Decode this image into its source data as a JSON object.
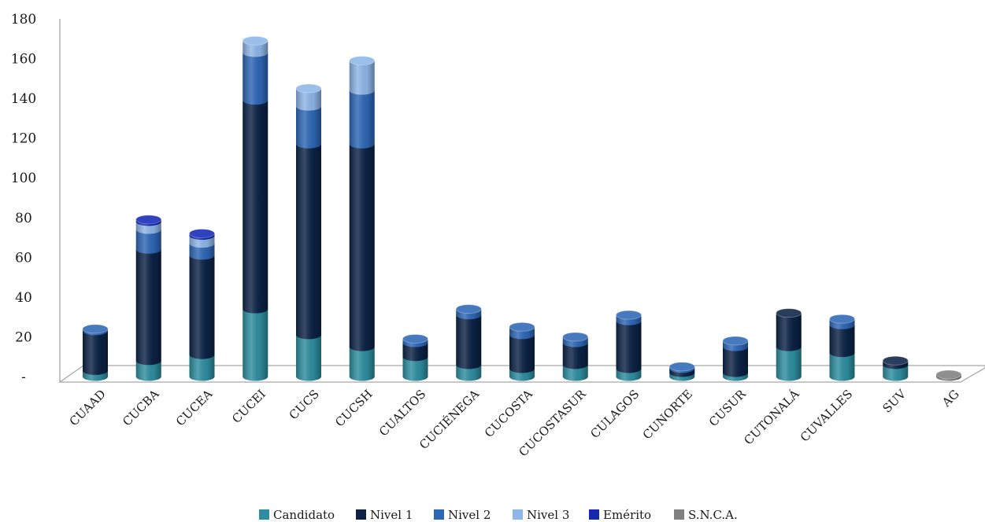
{
  "chart_data": {
    "type": "bar",
    "stacked": true,
    "style": "3d-cylinder",
    "title": "",
    "xlabel": "",
    "ylabel": "",
    "ylim": [
      0,
      180
    ],
    "yticks": [
      {
        "value": 0,
        "label": "-"
      },
      {
        "value": 20,
        "label": "20"
      },
      {
        "value": 40,
        "label": "40"
      },
      {
        "value": 60,
        "label": "60"
      },
      {
        "value": 80,
        "label": "80"
      },
      {
        "value": 100,
        "label": "100"
      },
      {
        "value": 120,
        "label": "120"
      },
      {
        "value": 140,
        "label": "140"
      },
      {
        "value": 160,
        "label": "160"
      },
      {
        "value": 180,
        "label": "180"
      }
    ],
    "grid": false,
    "legend_position": "bottom",
    "categories": [
      "CUAAD",
      "CUCBA",
      "CUCEA",
      "CUCEI",
      "CUCS",
      "CUCSH",
      "CUALTOS",
      "CUCIÉNEGA",
      "CUCOSTA",
      "CUCOSTASUR",
      "CULAGOS",
      "CUNORTE",
      "CUSUR",
      "CUTONALÁ",
      "CUVALLES",
      "SUV",
      "AG"
    ],
    "series": [
      {
        "name": "Candidato",
        "color": "#2e8ea0",
        "values": [
          3,
          8,
          11,
          34,
          21,
          15,
          10,
          6,
          4,
          6,
          4,
          2,
          2,
          15,
          12,
          6,
          0
        ]
      },
      {
        "name": "Nivel 1",
        "color": "#0c2346",
        "values": [
          20,
          56,
          50,
          105,
          96,
          102,
          7,
          25,
          17,
          11,
          24,
          2,
          13,
          17,
          14,
          2,
          0
        ]
      },
      {
        "name": "Nivel 2",
        "color": "#2e67b6",
        "values": [
          1,
          10,
          6,
          24,
          19,
          27,
          2,
          3,
          4,
          3,
          3,
          1,
          3,
          0,
          3,
          0,
          0
        ]
      },
      {
        "name": "Nivel 3",
        "color": "#8fb6e8",
        "values": [
          0,
          4,
          4,
          6,
          9,
          15,
          0,
          0,
          0,
          0,
          0,
          0,
          0,
          0,
          0,
          0,
          0
        ]
      },
      {
        "name": "Emérito",
        "color": "#1428b4",
        "values": [
          0,
          1,
          1,
          0,
          0,
          0,
          0,
          0,
          0,
          0,
          0,
          0,
          0,
          0,
          0,
          0,
          0
        ]
      },
      {
        "name": "S.N.C.A.",
        "color": "#808080",
        "values": [
          0,
          0,
          0,
          0,
          0,
          0,
          0,
          0,
          0,
          0,
          0,
          0,
          0,
          0,
          0,
          0,
          1
        ]
      }
    ]
  }
}
